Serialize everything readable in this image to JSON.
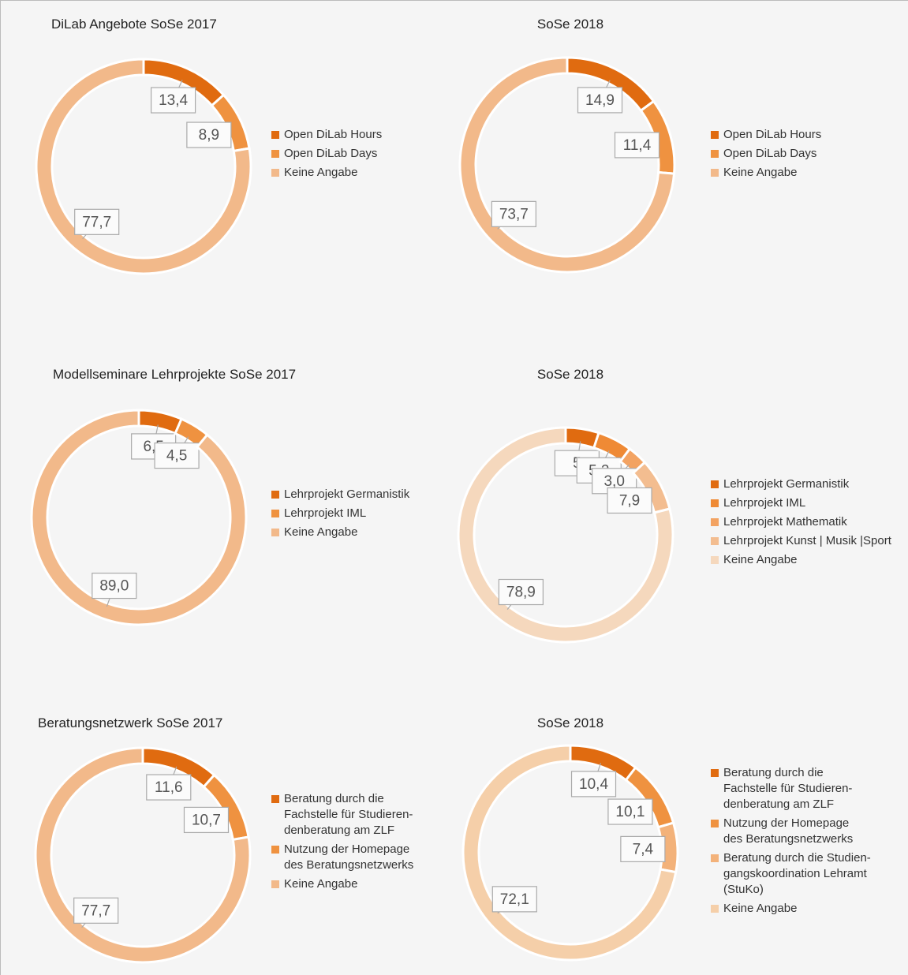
{
  "chart_data": [
    {
      "type": "donut",
      "title": "DiLab Angebote SoSe 2017",
      "categories": [
        "Open DiLab Hours",
        "Open DiLab Days",
        "Keine Angabe"
      ],
      "values": [
        13.4,
        8.9,
        77.7
      ],
      "value_labels": [
        "13,4",
        "8,9",
        "77,7"
      ],
      "colors": [
        "#e06b10",
        "#ef9240",
        "#f2b98a"
      ]
    },
    {
      "type": "donut",
      "title": "SoSe 2018",
      "categories": [
        "Open DiLab Hours",
        "Open DiLab Days",
        "Keine Angabe"
      ],
      "values": [
        14.9,
        11.4,
        73.7
      ],
      "value_labels": [
        "14,9",
        "11,4",
        "73,7"
      ],
      "colors": [
        "#e06b10",
        "#ef9240",
        "#f2b98a"
      ]
    },
    {
      "type": "donut",
      "title": "Modellseminare Lehrprojekte SoSe 2017",
      "categories": [
        "Lehrprojekt Germanistik",
        "Lehrprojekt IML",
        "Keine Angabe"
      ],
      "values": [
        6.5,
        4.5,
        89.0
      ],
      "value_labels": [
        "6,5",
        "4,5",
        "89,0"
      ],
      "colors": [
        "#e06b10",
        "#ef9240",
        "#f2b98a"
      ]
    },
    {
      "type": "donut",
      "title": "SoSe 2018",
      "categories": [
        "Lehrprojekt Germanistik",
        "Lehrprojekt IML",
        "Lehrprojekt Mathematik",
        "Lehrprojekt Kunst | Musik |Sport",
        "Keine Angabe"
      ],
      "values": [
        5,
        5.2,
        3.0,
        7.9,
        78.9
      ],
      "value_labels": [
        "5",
        "5,2",
        "3,0",
        "7,9",
        "78,9"
      ],
      "colors": [
        "#e06b10",
        "#ef8a35",
        "#f3a362",
        "#f3bd90",
        "#f5d8bd"
      ]
    },
    {
      "type": "donut",
      "title": "Beratungsnetzwerk SoSe 2017",
      "categories": [
        "Beratung durch die\nFachstelle für Studieren-\ndenberatung am ZLF",
        "Nutzung der Homepage\ndes Beratungsnetzwerks",
        "Keine Angabe"
      ],
      "values": [
        11.6,
        10.7,
        77.7
      ],
      "value_labels": [
        "11,6",
        "10,7",
        "77,7"
      ],
      "colors": [
        "#e06b10",
        "#ef9240",
        "#f2b98a"
      ]
    },
    {
      "type": "donut",
      "title": "SoSe 2018",
      "categories": [
        "Beratung durch die\nFachstelle für Studieren-\ndenberatung am ZLF",
        "Nutzung der Homepage\ndes Beratungsnetzwerks",
        "Beratung durch die Studien-\ngangskoordination Lehramt\n(StuKo)",
        "Keine Angabe"
      ],
      "values": [
        10.4,
        10.1,
        7.4,
        72.1
      ],
      "value_labels": [
        "10,4",
        "10,1",
        "7,4",
        "72,1"
      ],
      "colors": [
        "#e06b10",
        "#ef9240",
        "#f3b27a",
        "#f5cfa9"
      ]
    }
  ]
}
